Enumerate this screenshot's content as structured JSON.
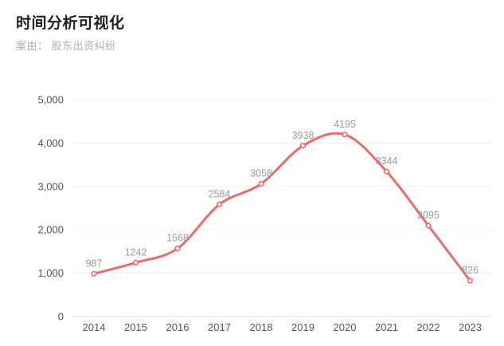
{
  "header": {
    "title": "时间分析可视化",
    "subtitle": "案由： 股东出资纠纷"
  },
  "chart_data": {
    "type": "line",
    "title": "时间分析可视化",
    "subtitle": "案由： 股东出资纠纷",
    "categories": [
      "2014",
      "2015",
      "2016",
      "2017",
      "2018",
      "2019",
      "2020",
      "2021",
      "2022",
      "2023"
    ],
    "values": [
      987,
      1242,
      1568,
      2584,
      3058,
      3938,
      4195,
      3344,
      2095,
      826
    ],
    "point_labels": [
      "987",
      "1242",
      "1568",
      "2584",
      "3058",
      "3938",
      "4195",
      "3344",
      "2095",
      "826"
    ],
    "xlabel": "",
    "ylabel": "",
    "ylim": [
      0,
      5000
    ],
    "y_ticks": [
      0,
      1000,
      2000,
      3000,
      4000,
      5000
    ],
    "y_tick_labels": [
      "0",
      "1,000",
      "2,000",
      "3,000",
      "4,000",
      "5,000"
    ],
    "grid": "horizontal",
    "legend_position": "none",
    "smooth": true,
    "colors": {
      "line": "#ec6a6a",
      "marker_fill": "#ffffff",
      "gridline": "#efefef",
      "axis_line": "#e2e2e2",
      "axis_label": "#555555",
      "point_label": "#9b9b9b",
      "title": "#1f1f1f",
      "subtitle": "#aeaeae"
    }
  }
}
